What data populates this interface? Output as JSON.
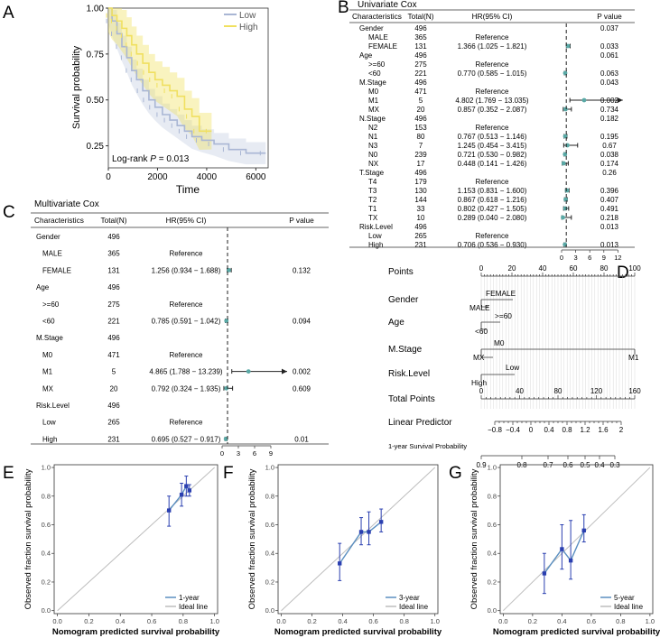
{
  "panels": {
    "A": "A",
    "B": "B",
    "C": "C",
    "D": "D",
    "E": "E",
    "F": "F",
    "G": "G"
  },
  "km": {
    "ylabel": "Survival probability",
    "xlabel": "Time",
    "pvalue_prefix": "Log-rank ",
    "pvalue_italic": "P",
    "pvalue_suffix": " = 0.013",
    "legend": [
      "Low",
      "High"
    ],
    "low_color": "#a9b6d4",
    "high_color": "#f0e060",
    "xticks": [
      "0",
      "2000",
      "4000",
      "6000"
    ],
    "yticks": [
      "0.25",
      "0.50",
      "0.75",
      "1.00"
    ]
  },
  "uni": {
    "title": "Univariate Cox",
    "headers": {
      "char": "Characteristics",
      "total": "Total(N)",
      "hr": "HR(95% CI)",
      "p": "P value"
    },
    "axis_ticks": [
      "0",
      "3",
      "6",
      "9",
      "12"
    ],
    "rows": [
      {
        "c": "Gender",
        "n": "496",
        "hr": "",
        "p": "0.037",
        "level": 0
      },
      {
        "c": "MALE",
        "n": "365",
        "hr": "Reference",
        "p": "",
        "level": 1
      },
      {
        "c": "FEMALE",
        "n": "131",
        "hr": "1.366 (1.025 − 1.821)",
        "p": "0.033",
        "level": 1,
        "est": 1.366,
        "lo": 1.025,
        "hi": 1.821
      },
      {
        "c": "Age",
        "n": "496",
        "hr": "",
        "p": "0.061",
        "level": 0
      },
      {
        "c": ">=60",
        "n": "275",
        "hr": "Reference",
        "p": "",
        "level": 1
      },
      {
        "c": "<60",
        "n": "221",
        "hr": "0.770 (0.585 − 1.015)",
        "p": "0.063",
        "level": 1,
        "est": 0.77,
        "lo": 0.585,
        "hi": 1.015
      },
      {
        "c": "M.Stage",
        "n": "496",
        "hr": "",
        "p": "0.043",
        "level": 0
      },
      {
        "c": "M0",
        "n": "471",
        "hr": "Reference",
        "p": "",
        "level": 1
      },
      {
        "c": "M1",
        "n": "5",
        "hr": "4.802 (1.769 − 13.035)",
        "p": "0.002",
        "level": 1,
        "est": 4.802,
        "lo": 1.769,
        "hi": 13.035,
        "arrow": true
      },
      {
        "c": "MX",
        "n": "20",
        "hr": "0.857 (0.352 − 2.087)",
        "p": "0.734",
        "level": 1,
        "est": 0.857,
        "lo": 0.352,
        "hi": 2.087
      },
      {
        "c": "N.Stage",
        "n": "496",
        "hr": "",
        "p": "0.182",
        "level": 0
      },
      {
        "c": "N2",
        "n": "153",
        "hr": "Reference",
        "p": "",
        "level": 1
      },
      {
        "c": "N1",
        "n": "80",
        "hr": "0.767 (0.513 − 1.146)",
        "p": "0.195",
        "level": 1,
        "est": 0.767,
        "lo": 0.513,
        "hi": 1.146
      },
      {
        "c": "N3",
        "n": "7",
        "hr": "1.245 (0.454 − 3.415)",
        "p": "0.67",
        "level": 1,
        "est": 1.245,
        "lo": 0.454,
        "hi": 3.415
      },
      {
        "c": "N0",
        "n": "239",
        "hr": "0.721 (0.530 − 0.982)",
        "p": "0.038",
        "level": 1,
        "est": 0.721,
        "lo": 0.53,
        "hi": 0.982
      },
      {
        "c": "NX",
        "n": "17",
        "hr": "0.448 (0.141 − 1.426)",
        "p": "0.174",
        "level": 1,
        "est": 0.448,
        "lo": 0.141,
        "hi": 1.426
      },
      {
        "c": "T.Stage",
        "n": "496",
        "hr": "",
        "p": "0.26",
        "level": 0
      },
      {
        "c": "T4",
        "n": "179",
        "hr": "Reference",
        "p": "",
        "level": 1
      },
      {
        "c": "T3",
        "n": "130",
        "hr": "1.153 (0.831 − 1.600)",
        "p": "0.396",
        "level": 1,
        "est": 1.153,
        "lo": 0.831,
        "hi": 1.6
      },
      {
        "c": "T2",
        "n": "144",
        "hr": "0.867 (0.618 − 1.216)",
        "p": "0.407",
        "level": 1,
        "est": 0.867,
        "lo": 0.618,
        "hi": 1.216
      },
      {
        "c": "T1",
        "n": "33",
        "hr": "0.802 (0.427 − 1.505)",
        "p": "0.491",
        "level": 1,
        "est": 0.802,
        "lo": 0.427,
        "hi": 1.505
      },
      {
        "c": "TX",
        "n": "10",
        "hr": "0.289 (0.040 − 2.080)",
        "p": "0.218",
        "level": 1,
        "est": 0.289,
        "lo": 0.04,
        "hi": 2.08
      },
      {
        "c": "Risk.Level",
        "n": "496",
        "hr": "",
        "p": "0.013",
        "level": 0
      },
      {
        "c": "Low",
        "n": "265",
        "hr": "Reference",
        "p": "",
        "level": 1
      },
      {
        "c": "High",
        "n": "231",
        "hr": "0.706 (0.536 − 0.930)",
        "p": "0.013",
        "level": 1,
        "est": 0.706,
        "lo": 0.536,
        "hi": 0.93
      }
    ]
  },
  "multi": {
    "title": "Multivariate Cox",
    "headers": {
      "char": "Characteristics",
      "total": "Total(N)",
      "hr": "HR(95% CI)",
      "p": "P value"
    },
    "axis_ticks": [
      "0",
      "3",
      "6",
      "9"
    ],
    "rows": [
      {
        "c": "Gender",
        "n": "496",
        "hr": "",
        "p": "",
        "level": 0
      },
      {
        "c": "MALE",
        "n": "365",
        "hr": "Reference",
        "p": "",
        "level": 1
      },
      {
        "c": "FEMALE",
        "n": "131",
        "hr": "1.256 (0.934 − 1.688)",
        "p": "0.132",
        "level": 1,
        "est": 1.256,
        "lo": 0.934,
        "hi": 1.688
      },
      {
        "c": "Age",
        "n": "496",
        "hr": "",
        "p": "",
        "level": 0
      },
      {
        "c": ">=60",
        "n": "275",
        "hr": "Reference",
        "p": "",
        "level": 1
      },
      {
        "c": "<60",
        "n": "221",
        "hr": "0.785 (0.591 − 1.042)",
        "p": "0.094",
        "level": 1,
        "est": 0.785,
        "lo": 0.591,
        "hi": 1.042
      },
      {
        "c": "M.Stage",
        "n": "496",
        "hr": "",
        "p": "",
        "level": 0
      },
      {
        "c": "M0",
        "n": "471",
        "hr": "Reference",
        "p": "",
        "level": 1
      },
      {
        "c": "M1",
        "n": "5",
        "hr": "4.865 (1.788 − 13.239)",
        "p": "0.002",
        "level": 1,
        "est": 4.865,
        "lo": 1.788,
        "hi": 13.239,
        "arrow": true
      },
      {
        "c": "MX",
        "n": "20",
        "hr": "0.792 (0.324 − 1.935)",
        "p": "0.609",
        "level": 1,
        "est": 0.792,
        "lo": 0.324,
        "hi": 1.935
      },
      {
        "c": "Risk.Level",
        "n": "496",
        "hr": "",
        "p": "",
        "level": 0
      },
      {
        "c": "Low",
        "n": "265",
        "hr": "Reference",
        "p": "",
        "level": 1
      },
      {
        "c": "High",
        "n": "231",
        "hr": "0.695 (0.527 − 0.917)",
        "p": "0.01",
        "level": 1,
        "est": 0.695,
        "lo": 0.527,
        "hi": 0.917
      }
    ]
  },
  "nomogram": {
    "rows": {
      "points": "Points",
      "gender": "Gender",
      "age": "Age",
      "mstage": "M.Stage",
      "risk": "Risk.Level",
      "total": "Total Points",
      "lp": "Linear Predictor",
      "surv": "1-year Survival Probability"
    },
    "points_ticks": [
      "0",
      "20",
      "40",
      "60",
      "80",
      "100"
    ],
    "gender_labels": {
      "top": "FEMALE",
      "bottom": "MALE"
    },
    "age_labels": {
      "top": ">=60",
      "bottom": "<60"
    },
    "mstage_labels": {
      "top": "M0",
      "bottom_left": "MX",
      "bottom_right": "M1"
    },
    "risk_labels": {
      "top": "Low",
      "bottom": "High"
    },
    "total_ticks": [
      "0",
      "40",
      "80",
      "120",
      "160"
    ],
    "lp_ticks": [
      "−0.8",
      "−0.4",
      "0",
      "0.4",
      "0.8",
      "1.2",
      "1.6",
      "2"
    ],
    "surv_ticks": [
      "0.9",
      "0.8",
      "0.7",
      "0.6",
      "0.5",
      "0.4",
      "0.3"
    ]
  },
  "calibration": {
    "xlabel": "Nomogram predicted survival probability",
    "ylabel": "Observed fraction survival probability",
    "ticks": [
      "0.0",
      "0.2",
      "0.4",
      "0.6",
      "0.8",
      "1.0"
    ],
    "ideal_label": "Ideal line",
    "line_color": "#5b8fc0",
    "point_color": "#2a3fb0"
  },
  "chart_data": [
    {
      "panel": "A",
      "type": "line",
      "title": "",
      "xlabel": "Time",
      "ylabel": "Survival probability",
      "xlim": [
        0,
        6500
      ],
      "ylim": [
        0.13,
        1.0
      ],
      "annotation": "Log-rank P = 0.013",
      "series": [
        {
          "name": "Low",
          "color": "#a9b6d4",
          "x": [
            0,
            150,
            350,
            550,
            750,
            950,
            1150,
            1400,
            1650,
            1900,
            2200,
            2500,
            2800,
            3100,
            3400,
            3800,
            4300,
            4900,
            5600,
            6400
          ],
          "y": [
            1.0,
            0.93,
            0.86,
            0.79,
            0.73,
            0.66,
            0.61,
            0.55,
            0.5,
            0.46,
            0.42,
            0.39,
            0.36,
            0.33,
            0.3,
            0.28,
            0.26,
            0.23,
            0.21,
            0.21
          ]
        },
        {
          "name": "High",
          "color": "#f0e060",
          "x": [
            0,
            150,
            350,
            550,
            750,
            950,
            1150,
            1400,
            1650,
            1900,
            2200,
            2500,
            2800,
            3100,
            3400,
            3700,
            4200
          ],
          "y": [
            1.0,
            0.96,
            0.93,
            0.89,
            0.85,
            0.8,
            0.75,
            0.7,
            0.65,
            0.61,
            0.58,
            0.55,
            0.52,
            0.45,
            0.41,
            0.33,
            0.33
          ]
        }
      ]
    },
    {
      "panel": "E",
      "type": "scatter",
      "xlabel": "Nomogram predicted survival probability",
      "ylabel": "Observed fraction survival probability",
      "xlim": [
        0,
        1
      ],
      "ylim": [
        0,
        1
      ],
      "series": [
        {
          "name": "1-year",
          "x": [
            0.71,
            0.79,
            0.82,
            0.84
          ],
          "y": [
            0.7,
            0.81,
            0.87,
            0.84
          ],
          "err_lo": [
            0.59,
            0.73,
            0.8,
            0.8
          ],
          "err_hi": [
            0.8,
            0.89,
            0.94,
            0.88
          ]
        },
        {
          "name": "Ideal line",
          "x": [
            0,
            1
          ],
          "y": [
            0,
            1
          ]
        }
      ]
    },
    {
      "panel": "F",
      "type": "scatter",
      "xlabel": "Nomogram predicted survival probability",
      "ylabel": "Observed fraction survival probability",
      "xlim": [
        0,
        1
      ],
      "ylim": [
        0,
        1
      ],
      "series": [
        {
          "name": "3-year",
          "x": [
            0.38,
            0.52,
            0.57,
            0.65
          ],
          "y": [
            0.33,
            0.55,
            0.55,
            0.62
          ],
          "err_lo": [
            0.21,
            0.46,
            0.46,
            0.55
          ],
          "err_hi": [
            0.47,
            0.65,
            0.69,
            0.71
          ]
        },
        {
          "name": "Ideal line",
          "x": [
            0,
            1
          ],
          "y": [
            0,
            1
          ]
        }
      ]
    },
    {
      "panel": "G",
      "type": "scatter",
      "xlabel": "Nomogram predicted survival probability",
      "ylabel": "Observed fraction survival probability",
      "xlim": [
        0,
        1
      ],
      "ylim": [
        0,
        1
      ],
      "series": [
        {
          "name": "5-year",
          "x": [
            0.28,
            0.4,
            0.46,
            0.55
          ],
          "y": [
            0.26,
            0.43,
            0.35,
            0.56
          ],
          "err_lo": [
            0.12,
            0.29,
            0.22,
            0.48
          ],
          "err_hi": [
            0.4,
            0.6,
            0.63,
            0.67
          ]
        },
        {
          "name": "Ideal line",
          "x": [
            0,
            1
          ],
          "y": [
            0,
            1
          ]
        }
      ]
    }
  ]
}
